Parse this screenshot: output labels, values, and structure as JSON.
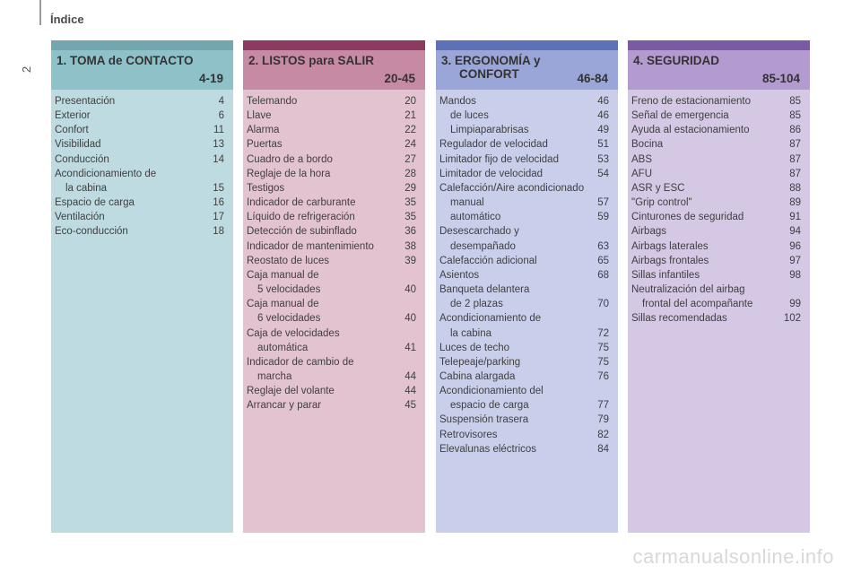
{
  "page": {
    "title": "Índice",
    "number": "2",
    "watermark": "carmanualsonline.info"
  },
  "colors": {
    "section1": "#8fc1c9",
    "section2": "#c78aa5",
    "section3": "#9aa6d7",
    "section4": "#b39bcf"
  },
  "sections": [
    {
      "title_line1": "1. TOMA de CONTACTO",
      "title_line2": "",
      "range": "4-19",
      "entries": [
        {
          "label": "Presentación",
          "page": "4"
        },
        {
          "label": "Exterior",
          "page": "6"
        },
        {
          "label": "Confort",
          "page": "11"
        },
        {
          "label": "Visibilidad",
          "page": "13"
        },
        {
          "label": "Conducción",
          "page": "14"
        },
        {
          "label": "Acondicionamiento de",
          "page": ""
        },
        {
          "label": "la cabina",
          "page": "15",
          "cont": true
        },
        {
          "label": "Espacio de carga",
          "page": "16"
        },
        {
          "label": "Ventilación",
          "page": "17"
        },
        {
          "label": "Eco-conducción",
          "page": "18"
        }
      ]
    },
    {
      "title_line1": "2. LISTOS para SALIR",
      "title_line2": "",
      "range": "20-45",
      "entries": [
        {
          "label": "Telemando",
          "page": "20"
        },
        {
          "label": "Llave",
          "page": "21"
        },
        {
          "label": "Alarma",
          "page": "22"
        },
        {
          "label": "Puertas",
          "page": "24"
        },
        {
          "label": "Cuadro de a bordo",
          "page": "27"
        },
        {
          "label": "Reglaje de la hora",
          "page": "28"
        },
        {
          "label": "Testigos",
          "page": "29"
        },
        {
          "label": "Indicador de carburante",
          "page": "35"
        },
        {
          "label": "Líquido de refrigeración",
          "page": "35"
        },
        {
          "label": "Detección de subinflado",
          "page": "36"
        },
        {
          "label": "Indicador de mantenimiento",
          "page": "38"
        },
        {
          "label": "Reostato de luces",
          "page": "39"
        },
        {
          "label": "Caja manual de",
          "page": ""
        },
        {
          "label": "5 velocidades",
          "page": "40",
          "cont": true
        },
        {
          "label": "Caja manual de",
          "page": ""
        },
        {
          "label": "6 velocidades",
          "page": "40",
          "cont": true
        },
        {
          "label": "Caja de velocidades",
          "page": ""
        },
        {
          "label": "automática",
          "page": "41",
          "cont": true
        },
        {
          "label": "Indicador de cambio de",
          "page": ""
        },
        {
          "label": "marcha",
          "page": "44",
          "cont": true
        },
        {
          "label": "Reglaje del volante",
          "page": "44"
        },
        {
          "label": "Arrancar y parar",
          "page": "45"
        }
      ]
    },
    {
      "title_line1": "3. ERGONOMÍA y",
      "title_line2": "CONFORT",
      "range": "46-84",
      "entries": [
        {
          "label": "Mandos",
          "page": "46"
        },
        {
          "label": "de luces",
          "page": "46",
          "cont": true
        },
        {
          "label": "Limpiaparabrisas",
          "page": "49",
          "cont": true
        },
        {
          "label": "Regulador de velocidad",
          "page": "51"
        },
        {
          "label": "Limitador fijo de velocidad",
          "page": "53"
        },
        {
          "label": "Limitador de velocidad",
          "page": "54"
        },
        {
          "label": "Calefacción/Aire acondicionado",
          "page": ""
        },
        {
          "label": "manual",
          "page": "57",
          "cont": true
        },
        {
          "label": "automático",
          "page": "59",
          "cont": true
        },
        {
          "label": "Desescarchado y",
          "page": ""
        },
        {
          "label": "desempañado",
          "page": "63",
          "cont": true
        },
        {
          "label": "Calefacción adicional",
          "page": "65"
        },
        {
          "label": "Asientos",
          "page": "68"
        },
        {
          "label": "Banqueta delantera",
          "page": ""
        },
        {
          "label": "de 2 plazas",
          "page": "70",
          "cont": true
        },
        {
          "label": "Acondicionamiento de",
          "page": ""
        },
        {
          "label": "la cabina",
          "page": "72",
          "cont": true
        },
        {
          "label": "Luces de techo",
          "page": "75"
        },
        {
          "label": "Telepeaje/parking",
          "page": "75"
        },
        {
          "label": "Cabina alargada",
          "page": "76"
        },
        {
          "label": "Acondicionamiento del",
          "page": ""
        },
        {
          "label": "espacio de carga",
          "page": "77",
          "cont": true
        },
        {
          "label": "Suspensión trasera",
          "page": "79"
        },
        {
          "label": "Retrovisores",
          "page": "82"
        },
        {
          "label": "Elevalunas eléctricos",
          "page": "84"
        }
      ]
    },
    {
      "title_line1": "4. SEGURIDAD",
      "title_line2": "",
      "range": "85-104",
      "entries": [
        {
          "label": "Freno de estacionamiento",
          "page": "85"
        },
        {
          "label": "Señal de emergencia",
          "page": "85"
        },
        {
          "label": "Ayuda al estacionamiento",
          "page": "86"
        },
        {
          "label": "Bocina",
          "page": "87"
        },
        {
          "label": "ABS",
          "page": "87"
        },
        {
          "label": "AFU",
          "page": "87"
        },
        {
          "label": "ASR y ESC",
          "page": "88"
        },
        {
          "label": "\"Grip control\"",
          "page": "89"
        },
        {
          "label": "Cinturones de seguridad",
          "page": "91"
        },
        {
          "label": "Airbags",
          "page": "94"
        },
        {
          "label": "Airbags laterales",
          "page": "96"
        },
        {
          "label": "Airbags frontales",
          "page": "97"
        },
        {
          "label": "Sillas infantiles",
          "page": "98"
        },
        {
          "label": "Neutralización del airbag",
          "page": ""
        },
        {
          "label": "frontal del acompañante",
          "page": "99",
          "cont": true
        },
        {
          "label": "Sillas recomendadas",
          "page": "102"
        }
      ]
    }
  ]
}
